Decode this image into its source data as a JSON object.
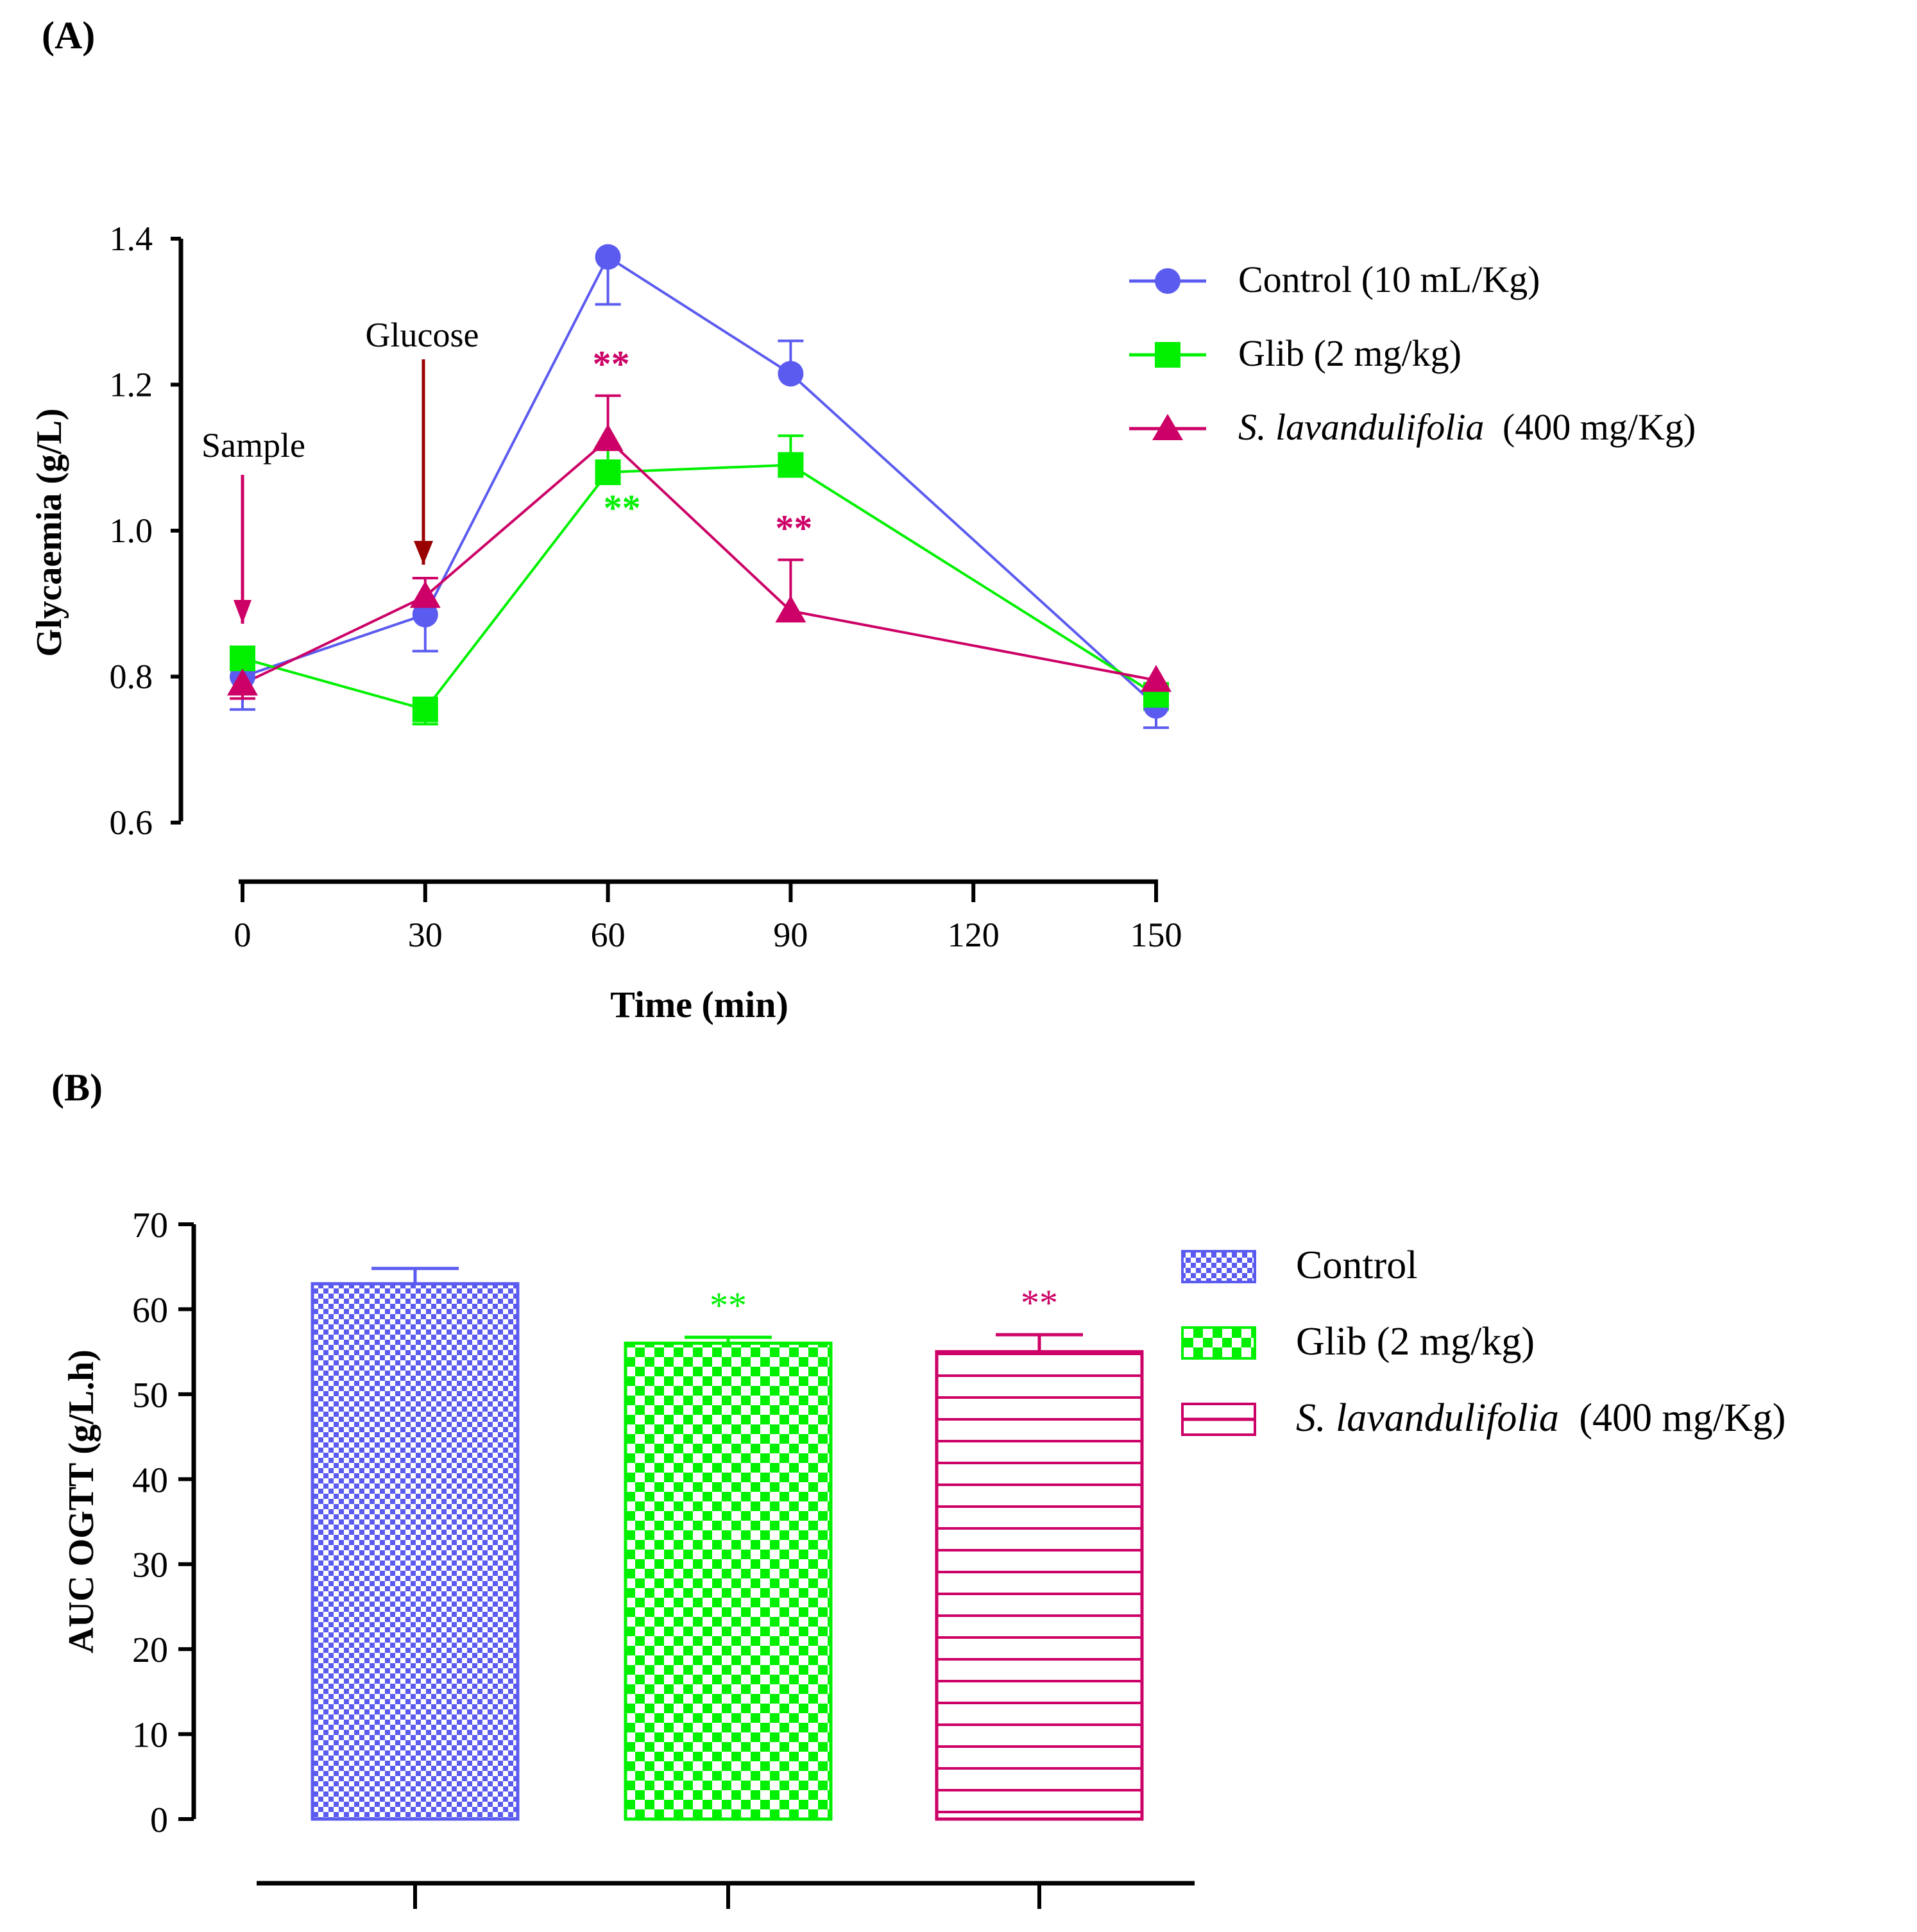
{
  "chart_data": [
    {
      "panel_label": "(A)",
      "type": "line",
      "xlabel": "Time (min)",
      "ylabel": "Glycaemia (g/L)",
      "x_ticks": [
        "0",
        "30",
        "60",
        "90",
        "120",
        "150"
      ],
      "y_ticks": [
        "0.6",
        "0.8",
        "1.0",
        "1.2",
        "1.4"
      ],
      "xlim": [
        0,
        150
      ],
      "ylim": [
        0.6,
        1.4
      ],
      "legend_position": "top-right",
      "annotations": [
        {
          "text": "Sample",
          "x": 0
        },
        {
          "text": "Glucose",
          "x": 30
        }
      ],
      "series": [
        {
          "name": "Control (10 mL/Kg)",
          "marker": "circle",
          "color": "#5b5bf0",
          "x": [
            0,
            30,
            60,
            90,
            150
          ],
          "y": [
            0.8,
            0.885,
            1.375,
            1.215,
            0.76
          ],
          "error": [
            0.045,
            0.05,
            0.065,
            0.045,
            0.03
          ],
          "significance": [
            "",
            "",
            "",
            "",
            ""
          ]
        },
        {
          "name": "Glib (2 mg/kg)",
          "marker": "square",
          "color": "#00f000",
          "x": [
            0,
            30,
            60,
            90,
            150
          ],
          "y": [
            0.825,
            0.755,
            1.08,
            1.09,
            0.775
          ],
          "error": [
            0.025,
            0.02,
            0.035,
            0.04,
            0.02
          ],
          "significance": [
            "",
            "",
            "**",
            "",
            ""
          ]
        },
        {
          "name_italic": "S. lavandulifolia",
          "name_rest": "(400 mg/Kg)",
          "marker": "triangle",
          "color": "#cc0066",
          "x": [
            0,
            30,
            60,
            90,
            150
          ],
          "y": [
            0.79,
            0.91,
            1.125,
            0.89,
            0.795
          ],
          "error": [
            0.02,
            0.025,
            0.06,
            0.07,
            0.025
          ],
          "significance": [
            "",
            "",
            "**",
            "**",
            ""
          ]
        }
      ]
    },
    {
      "panel_label": "(B)",
      "type": "bar",
      "ylabel": "AUC OGTT (g/L.h)",
      "y_ticks": [
        "0",
        "10",
        "20",
        "30",
        "40",
        "50",
        "60",
        "70"
      ],
      "ylim": [
        0,
        70
      ],
      "legend_position": "top-right",
      "series": [
        {
          "name": "Control",
          "value": 63.0,
          "error": 1.8,
          "pattern": "fine-check",
          "color": "#5b5bf0",
          "significance": ""
        },
        {
          "name": "Glib (2 mg/kg)",
          "value": 56.0,
          "error": 0.7,
          "pattern": "check",
          "color": "#00f000",
          "significance": "**"
        },
        {
          "name_italic": "S. lavandulifolia",
          "name_rest": "(400 mg/Kg)",
          "value": 55.0,
          "error": 2.0,
          "pattern": "horizontal-stripes",
          "color": "#cc0066",
          "significance": "**"
        }
      ]
    }
  ]
}
